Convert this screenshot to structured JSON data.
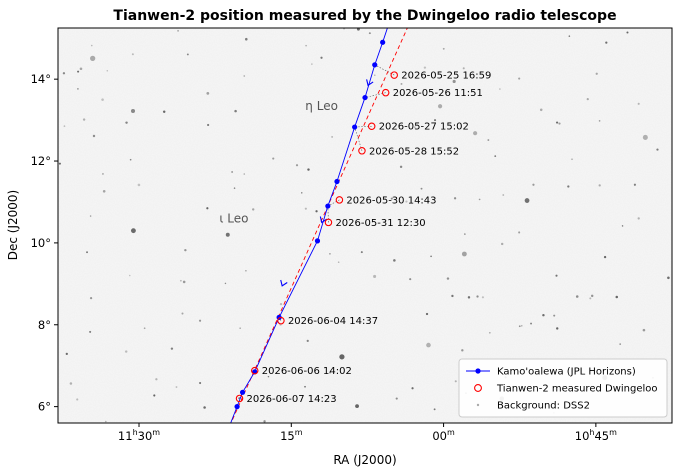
{
  "chart_data": {
    "type": "scatter",
    "title": "Tianwen-2 position measured by the Dwingeloo radio telescope",
    "xlabel": "RA (J2000)",
    "ylabel": "Dec (J2000)",
    "x_unit": "hours",
    "x_reversed": true,
    "xlim": [
      11.633,
      10.625
    ],
    "ylim": [
      5.6,
      15.25
    ],
    "x_ticks": [
      {
        "value": 11.5,
        "label": "11h30m",
        "major": "11",
        "h": "h",
        "minor": "30",
        "m": "m"
      },
      {
        "value": 11.25,
        "label": "15m",
        "major": "",
        "h": "",
        "minor": "15",
        "m": "m"
      },
      {
        "value": 11.0,
        "label": "00m",
        "major": "",
        "h": "",
        "minor": "00",
        "m": "m"
      },
      {
        "value": 10.75,
        "label": "10h45m",
        "major": "10",
        "h": "h",
        "minor": "45",
        "m": "m"
      }
    ],
    "y_ticks": [
      {
        "value": 6,
        "label": "6°"
      },
      {
        "value": 8,
        "label": "8°"
      },
      {
        "value": 10,
        "label": "10°"
      },
      {
        "value": 12,
        "label": "12°"
      },
      {
        "value": 14,
        "label": "14°"
      }
    ],
    "grid": false,
    "legend_position": "bottom-right",
    "background_stars": [
      {
        "name": "η Leo",
        "x": 11.227,
        "y": 13.25
      },
      {
        "name": "ι Leo",
        "x": 11.368,
        "y": 10.5
      }
    ],
    "series": [
      {
        "name": "Kamo'oalewa (JPL Horizons)",
        "color": "#0000ff",
        "style": "line-with-dots",
        "points": [
          {
            "x": 11.36,
            "y": 5.2
          },
          {
            "x": 11.339,
            "y": 6.0
          },
          {
            "x": 11.33,
            "y": 6.35
          },
          {
            "x": 11.31,
            "y": 6.85
          },
          {
            "x": 11.27,
            "y": 8.18
          },
          {
            "x": 11.207,
            "y": 10.05
          },
          {
            "x": 11.19,
            "y": 10.9
          },
          {
            "x": 11.175,
            "y": 11.5
          },
          {
            "x": 11.146,
            "y": 12.83
          },
          {
            "x": 11.129,
            "y": 13.55
          },
          {
            "x": 11.113,
            "y": 14.35
          },
          {
            "x": 11.1,
            "y": 14.9
          },
          {
            "x": 11.08,
            "y": 15.8
          }
        ],
        "direction_arrows": [
          {
            "x": 11.124,
            "y": 13.85
          },
          {
            "x": 11.2,
            "y": 10.5
          },
          {
            "x": 11.265,
            "y": 8.95
          }
        ]
      },
      {
        "name": "Tianwen-2 measured Dwingeloo",
        "color": "#ff0000",
        "style": "open-circle",
        "points": [
          {
            "x": 11.081,
            "y": 14.1,
            "label": "2026-05-25 16:59"
          },
          {
            "x": 11.095,
            "y": 13.67,
            "label": "2026-05-26 11:51"
          },
          {
            "x": 11.118,
            "y": 12.85,
            "label": "2026-05-27 15:02"
          },
          {
            "x": 11.134,
            "y": 12.25,
            "label": "2026-05-28 15:52"
          },
          {
            "x": 11.171,
            "y": 11.05,
            "label": "2026-05-30 14:43"
          },
          {
            "x": 11.189,
            "y": 10.5,
            "label": "2026-05-31 12:30"
          },
          {
            "x": 11.267,
            "y": 8.1,
            "label": "2026-06-04 14:37"
          },
          {
            "x": 11.31,
            "y": 6.88,
            "label": "2026-06-06 14:02"
          },
          {
            "x": 11.335,
            "y": 6.2,
            "label": "2026-06-07 14:23"
          }
        ],
        "fit_line": [
          {
            "x": 11.37,
            "y": 4.9
          },
          {
            "x": 11.058,
            "y": 15.3
          }
        ]
      }
    ],
    "legend": [
      {
        "label": "Kamo'oalewa (JPL Horizons)",
        "marker": "line-dot",
        "color": "#0000ff"
      },
      {
        "label": "Tianwen-2 measured Dwingeloo",
        "marker": "open-circle",
        "color": "#ff0000"
      },
      {
        "label": "Background: DSS2",
        "marker": "dot",
        "color": "#aaaaaa"
      }
    ]
  }
}
